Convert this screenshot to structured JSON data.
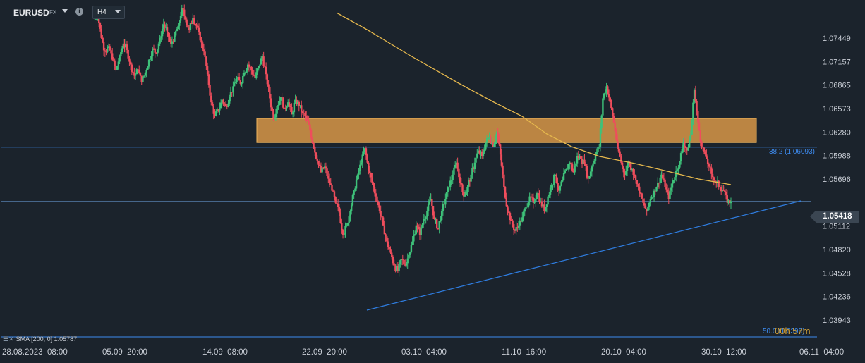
{
  "toolbar": {
    "symbol": "EURUSD",
    "symbol_type": "FX",
    "timeframe": "H4"
  },
  "chart_data": {
    "type": "candlestick",
    "symbol": "EURUSD",
    "timeframe": "H4",
    "y_ticks": [
      "1.07449",
      "1.07157",
      "1.06865",
      "1.06573",
      "1.06280",
      "1.05988",
      "1.05696",
      "1.05418",
      "1.05112",
      "1.04820",
      "1.04528",
      "1.04236",
      "1.03943"
    ],
    "x_ticks": [
      "28.08.2023  08:00",
      "05.09  20:00",
      "14.09  08:00",
      "22.09  20:00",
      "03.10  04:00",
      "11.10  16:00",
      "20.10  04:00",
      "30.10  12:00",
      "06.11  04:00"
    ],
    "ylim": [
      1.0385,
      1.0788
    ],
    "close_series": [
      1.0775,
      1.0745,
      1.0728,
      1.0735,
      1.0718,
      1.0705,
      1.0722,
      1.0738,
      1.073,
      1.0712,
      1.0698,
      1.0705,
      1.069,
      1.0702,
      1.0718,
      1.0732,
      1.0726,
      1.0745,
      1.0762,
      1.0752,
      1.0738,
      1.0748,
      1.076,
      1.0782,
      1.0768,
      1.0755,
      1.077,
      1.076,
      1.0742,
      1.0728,
      1.07,
      1.0665,
      1.0648,
      1.0655,
      1.0668,
      1.066,
      1.0672,
      1.0685,
      1.0695,
      1.0688,
      1.0702,
      1.0712,
      1.0705,
      1.0695,
      1.071,
      1.0722,
      1.07,
      1.067,
      1.0645,
      1.066,
      1.0672,
      1.0658,
      1.0665,
      1.065,
      1.0668,
      1.066,
      1.0652,
      1.0645,
      1.063,
      1.061,
      1.0592,
      1.0578,
      1.0585,
      1.057,
      1.0555,
      1.054,
      1.0528,
      1.05,
      1.0512,
      1.053,
      1.0555,
      1.0575,
      1.059,
      1.0608,
      1.058,
      1.0565,
      1.0548,
      1.053,
      1.0512,
      1.0492,
      1.0478,
      1.0462,
      1.0455,
      1.047,
      1.0462,
      1.0475,
      1.0492,
      1.0512,
      1.05,
      1.052,
      1.053,
      1.0545,
      1.052,
      1.0508,
      1.053,
      1.0545,
      1.056,
      1.0575,
      1.059,
      1.0565,
      1.0548,
      1.056,
      1.0575,
      1.059,
      1.0605,
      1.0598,
      1.0615,
      1.0622,
      1.061,
      1.0628,
      1.06,
      1.056,
      1.053,
      1.0518,
      1.0505,
      1.0512,
      1.0522,
      1.0535,
      1.0548,
      1.054,
      1.0552,
      1.0542,
      1.053,
      1.0548,
      1.0562,
      1.0575,
      1.0555,
      1.0568,
      1.0582,
      1.059,
      1.0578,
      1.0598,
      1.0595,
      1.0588,
      1.057,
      1.0585,
      1.06,
      1.061,
      1.067,
      1.0685,
      1.0665,
      1.064,
      1.061,
      1.059,
      1.0575,
      1.059,
      1.0582,
      1.0568,
      1.0552,
      1.054,
      1.053,
      1.0545,
      1.0555,
      1.0565,
      1.0575,
      1.056,
      1.0545,
      1.0565,
      1.058,
      1.0592,
      1.0615,
      1.0605,
      1.0625,
      1.068,
      1.064,
      1.061,
      1.06,
      1.0585,
      1.0572,
      1.0565,
      1.056,
      1.0555,
      1.054,
      1.0542
    ],
    "indicators": [
      {
        "name": "SMA [200, 0]",
        "value": 1.05787,
        "color": "#e6b84d"
      }
    ],
    "annotations": [
      {
        "type": "zone",
        "from": 1.0615,
        "to": 1.0645,
        "color": "#e8a24a"
      },
      {
        "type": "fib_level",
        "label": "38.2 (1.06093)",
        "value": 1.06093,
        "color": "#3d8bef"
      },
      {
        "type": "fib_level",
        "label": "50.0 (1.0395)",
        "value": 1.0395,
        "color": "#3d8bef"
      },
      {
        "type": "trendline",
        "from": [
          "03.10",
          1.0432
        ],
        "to": [
          "06.11",
          1.0557
        ],
        "color": "#2f7de0"
      },
      {
        "type": "current_price",
        "value": 1.05418
      }
    ],
    "colors": {
      "up": "#3ec27a",
      "down": "#ef4d5c",
      "background": "#1b232c"
    }
  },
  "legend": {
    "text": "SMA [200, 0] 1.05787"
  },
  "fib": {
    "label_382": "38.2 (1.06093)",
    "label_500": "50.0 (1.0395)"
  },
  "timer": {
    "text": "00h 57m"
  },
  "price_tag": {
    "value": "1.05418"
  }
}
